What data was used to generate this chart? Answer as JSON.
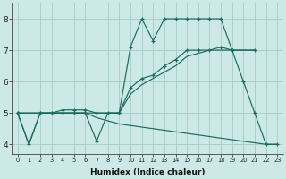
{
  "xlabel": "Humidex (Indice chaleur)",
  "xlim": [
    -0.5,
    23.5
  ],
  "ylim": [
    3.7,
    8.5
  ],
  "xticks": [
    0,
    1,
    2,
    3,
    4,
    5,
    6,
    7,
    8,
    9,
    10,
    11,
    12,
    13,
    14,
    15,
    16,
    17,
    18,
    19,
    20,
    21,
    22,
    23
  ],
  "yticks": [
    4,
    5,
    6,
    7,
    8
  ],
  "bg_color": "#cce9e7",
  "line_color": "#1a6b5e",
  "grid_color": "#aacfcc",
  "line1_x": [
    0,
    1,
    2,
    3,
    4,
    5,
    6,
    7,
    8,
    9,
    10,
    11,
    12,
    13,
    14,
    15,
    16,
    17,
    18,
    19,
    20,
    21,
    22,
    23
  ],
  "line1_y": [
    5.0,
    4.0,
    5.0,
    5.0,
    5.0,
    5.0,
    5.0,
    4.1,
    5.0,
    5.0,
    7.1,
    8.0,
    7.3,
    8.0,
    8.0,
    8.0,
    8.0,
    8.0,
    8.0,
    7.0,
    6.0,
    5.0,
    4.0,
    4.0
  ],
  "line2_x": [
    0,
    2,
    3,
    4,
    5,
    6,
    7,
    9,
    10,
    11,
    12,
    13,
    14,
    15,
    16,
    17,
    18,
    19,
    21
  ],
  "line2_y": [
    5.0,
    5.0,
    5.0,
    5.1,
    5.1,
    5.1,
    5.0,
    5.0,
    5.8,
    6.1,
    6.2,
    6.5,
    6.7,
    7.0,
    7.0,
    7.0,
    7.1,
    7.0,
    7.0
  ],
  "line3_x": [
    0,
    2,
    3,
    4,
    5,
    6,
    7,
    9,
    10,
    11,
    12,
    13,
    14,
    15,
    16,
    17,
    18,
    19,
    21
  ],
  "line3_y": [
    5.0,
    5.0,
    5.0,
    5.0,
    5.0,
    5.0,
    5.0,
    5.0,
    5.6,
    5.9,
    6.1,
    6.3,
    6.5,
    6.8,
    6.9,
    7.0,
    7.0,
    7.0,
    7.0
  ],
  "line4_x": [
    0,
    1,
    2,
    3,
    4,
    5,
    6,
    7,
    8,
    9,
    10,
    11,
    12,
    13,
    14,
    15,
    16,
    17,
    18,
    19,
    20,
    21,
    22,
    23
  ],
  "line4_y": [
    5.0,
    4.0,
    5.0,
    5.0,
    5.0,
    5.0,
    5.0,
    4.85,
    4.75,
    4.65,
    4.6,
    4.55,
    4.5,
    4.45,
    4.4,
    4.35,
    4.3,
    4.25,
    4.2,
    4.15,
    4.1,
    4.05,
    4.0,
    4.0
  ]
}
